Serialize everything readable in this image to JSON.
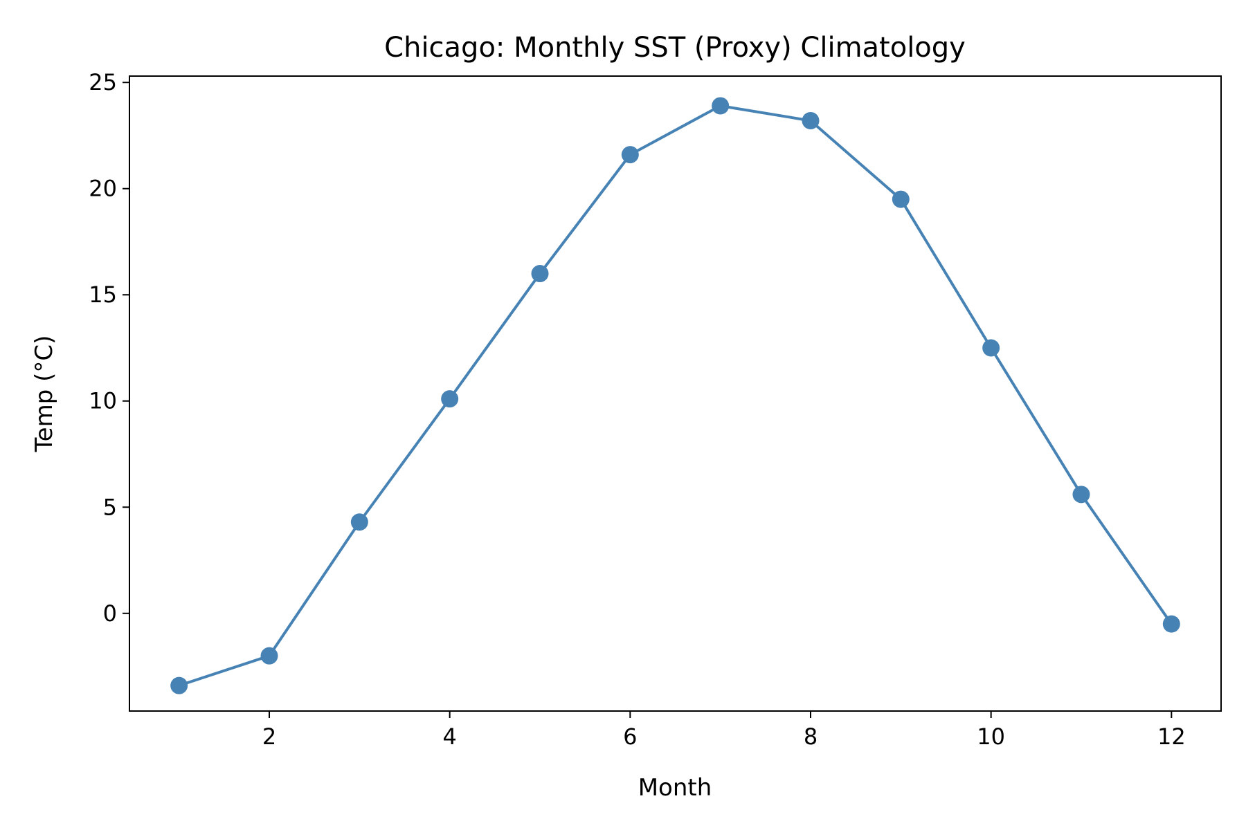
{
  "chart_data": {
    "type": "line",
    "title": "Chicago: Monthly SST (Proxy) Climatology",
    "xlabel": "Month",
    "ylabel": "Temp (°C)",
    "xlim": [
      0.45,
      12.55
    ],
    "ylim": [
      -4.6,
      25.3
    ],
    "xticks": [
      2,
      4,
      6,
      8,
      10,
      12
    ],
    "yticks": [
      0,
      5,
      10,
      15,
      20,
      25
    ],
    "grid": false,
    "legend": "none",
    "series": [
      {
        "color": "#4682b4",
        "marker": "circle",
        "x": [
          1,
          2,
          3,
          4,
          5,
          6,
          7,
          8,
          9,
          10,
          11,
          12
        ],
        "y": [
          -3.4,
          -2.0,
          4.3,
          10.1,
          16.0,
          21.6,
          23.9,
          23.2,
          19.5,
          12.5,
          5.6,
          -0.5
        ]
      }
    ]
  }
}
